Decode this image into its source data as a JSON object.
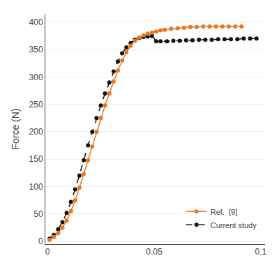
{
  "chart_data": {
    "type": "line",
    "ylabel": "Force (N)",
    "xlim": [
      -0.001,
      0.102
    ],
    "ylim": [
      -5,
      415
    ],
    "xticks": [
      0,
      0.05,
      0.1
    ],
    "yticks": [
      0,
      50,
      100,
      150,
      200,
      250,
      300,
      350,
      400
    ],
    "grid": "y",
    "legend": "lower right",
    "series": [
      {
        "name": "Ref.  [9]",
        "color": "#E87722",
        "marker": "circle",
        "line_style": "solid",
        "x": [
          0.001,
          0.003,
          0.005,
          0.007,
          0.009,
          0.011,
          0.013,
          0.015,
          0.017,
          0.019,
          0.021,
          0.023,
          0.025,
          0.027,
          0.029,
          0.031,
          0.033,
          0.035,
          0.037,
          0.039,
          0.041,
          0.043,
          0.045,
          0.047,
          0.049,
          0.051,
          0.053,
          0.055,
          0.058,
          0.061,
          0.064,
          0.067,
          0.07,
          0.073,
          0.076,
          0.079,
          0.082,
          0.085,
          0.088,
          0.091
        ],
        "values": [
          3,
          8,
          15,
          25,
          38,
          55,
          75,
          98,
          123,
          148,
          173,
          200,
          225,
          248,
          270,
          292,
          312,
          330,
          345,
          357,
          366,
          372,
          376,
          379,
          381,
          383,
          385,
          386,
          388,
          389,
          390,
          391,
          391,
          392,
          392,
          392,
          392,
          392,
          392,
          392
        ]
      },
      {
        "name": "Current study",
        "color": "#111111",
        "marker": "circle",
        "line_style": "dash",
        "x": [
          0.001,
          0.003,
          0.005,
          0.007,
          0.009,
          0.011,
          0.013,
          0.015,
          0.017,
          0.019,
          0.021,
          0.023,
          0.025,
          0.027,
          0.029,
          0.031,
          0.033,
          0.035,
          0.037,
          0.039,
          0.041,
          0.043,
          0.045,
          0.047,
          0.049,
          0.051,
          0.053,
          0.056,
          0.059,
          0.062,
          0.065,
          0.068,
          0.071,
          0.074,
          0.077,
          0.08,
          0.083,
          0.086,
          0.089,
          0.092,
          0.095,
          0.098
        ],
        "values": [
          5,
          12,
          22,
          35,
          52,
          72,
          95,
          120,
          148,
          175,
          200,
          225,
          248,
          270,
          290,
          310,
          328,
          343,
          354,
          362,
          368,
          371,
          373,
          374,
          375,
          365,
          365,
          365,
          366,
          366,
          367,
          367,
          368,
          368,
          368,
          369,
          369,
          369,
          369,
          370,
          370,
          370
        ]
      }
    ]
  }
}
